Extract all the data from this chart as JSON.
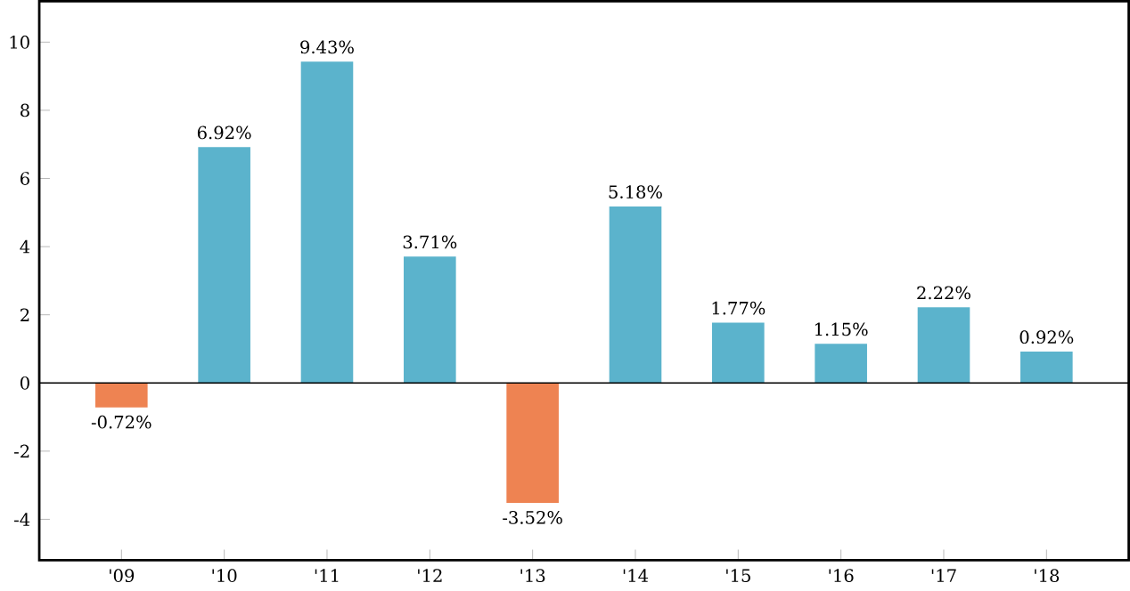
{
  "chart_data": {
    "type": "bar",
    "categories": [
      "'09",
      "'10",
      "'11",
      "'12",
      "'13",
      "'14",
      "'15",
      "'16",
      "'17",
      "'18"
    ],
    "values": [
      -0.72,
      6.92,
      9.43,
      3.71,
      -3.52,
      5.18,
      1.77,
      1.15,
      2.22,
      0.92
    ],
    "colors": [
      "#ee8352",
      "#5bb3cc",
      "#5bb3cc",
      "#5bb3cc",
      "#ee8352",
      "#5bb3cc",
      "#5bb3cc",
      "#5bb3cc",
      "#5bb3cc",
      "#5bb3cc"
    ],
    "value_labels": [
      "-0.72%",
      "6.92%",
      "9.43%",
      "3.71%",
      "-3.52%",
      "5.18%",
      "1.77%",
      "1.15%",
      "2.22%",
      "0.92%"
    ],
    "ylim": [
      -5.2,
      11.2
    ],
    "yticks": [
      -4,
      -2,
      0,
      2,
      4,
      6,
      8,
      10
    ],
    "ref_lines": [
      {
        "axis": "y",
        "value": 0,
        "color": "#000000"
      }
    ]
  }
}
